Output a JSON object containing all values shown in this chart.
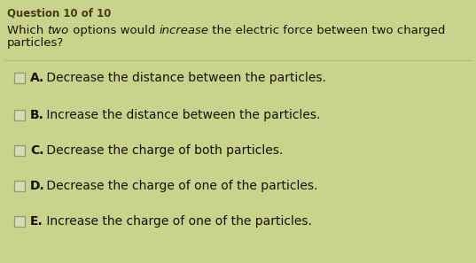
{
  "background_color": "#c8d48c",
  "header_text": "Question 10 of 10",
  "header_color": "#4a3a10",
  "question_line1": "Which ",
  "question_italic1": "two",
  "question_mid1": " options would ",
  "question_italic2": "increase",
  "question_end1": " the electric force between two charged",
  "question_line2": "particles?",
  "question_color": "#1a1000",
  "divider_color": "#b0b890",
  "options": [
    {
      "label": "A.",
      "text": " Decrease the distance between the particles."
    },
    {
      "label": "B.",
      "text": " Increase the distance between the particles."
    },
    {
      "label": "C.",
      "text": " Decrease the charge of both particles."
    },
    {
      "label": "D.",
      "text": " Decrease the charge of one of the particles."
    },
    {
      "label": "E.",
      "text": " Increase the charge of one of the particles."
    }
  ],
  "option_color": "#1a1000",
  "checkbox_facecolor": "#d8dab0",
  "checkbox_edgecolor": "#909878",
  "header_fontsize": 8.5,
  "question_fontsize": 9.5,
  "option_fontsize": 10.0,
  "label_fontsize": 10.0
}
